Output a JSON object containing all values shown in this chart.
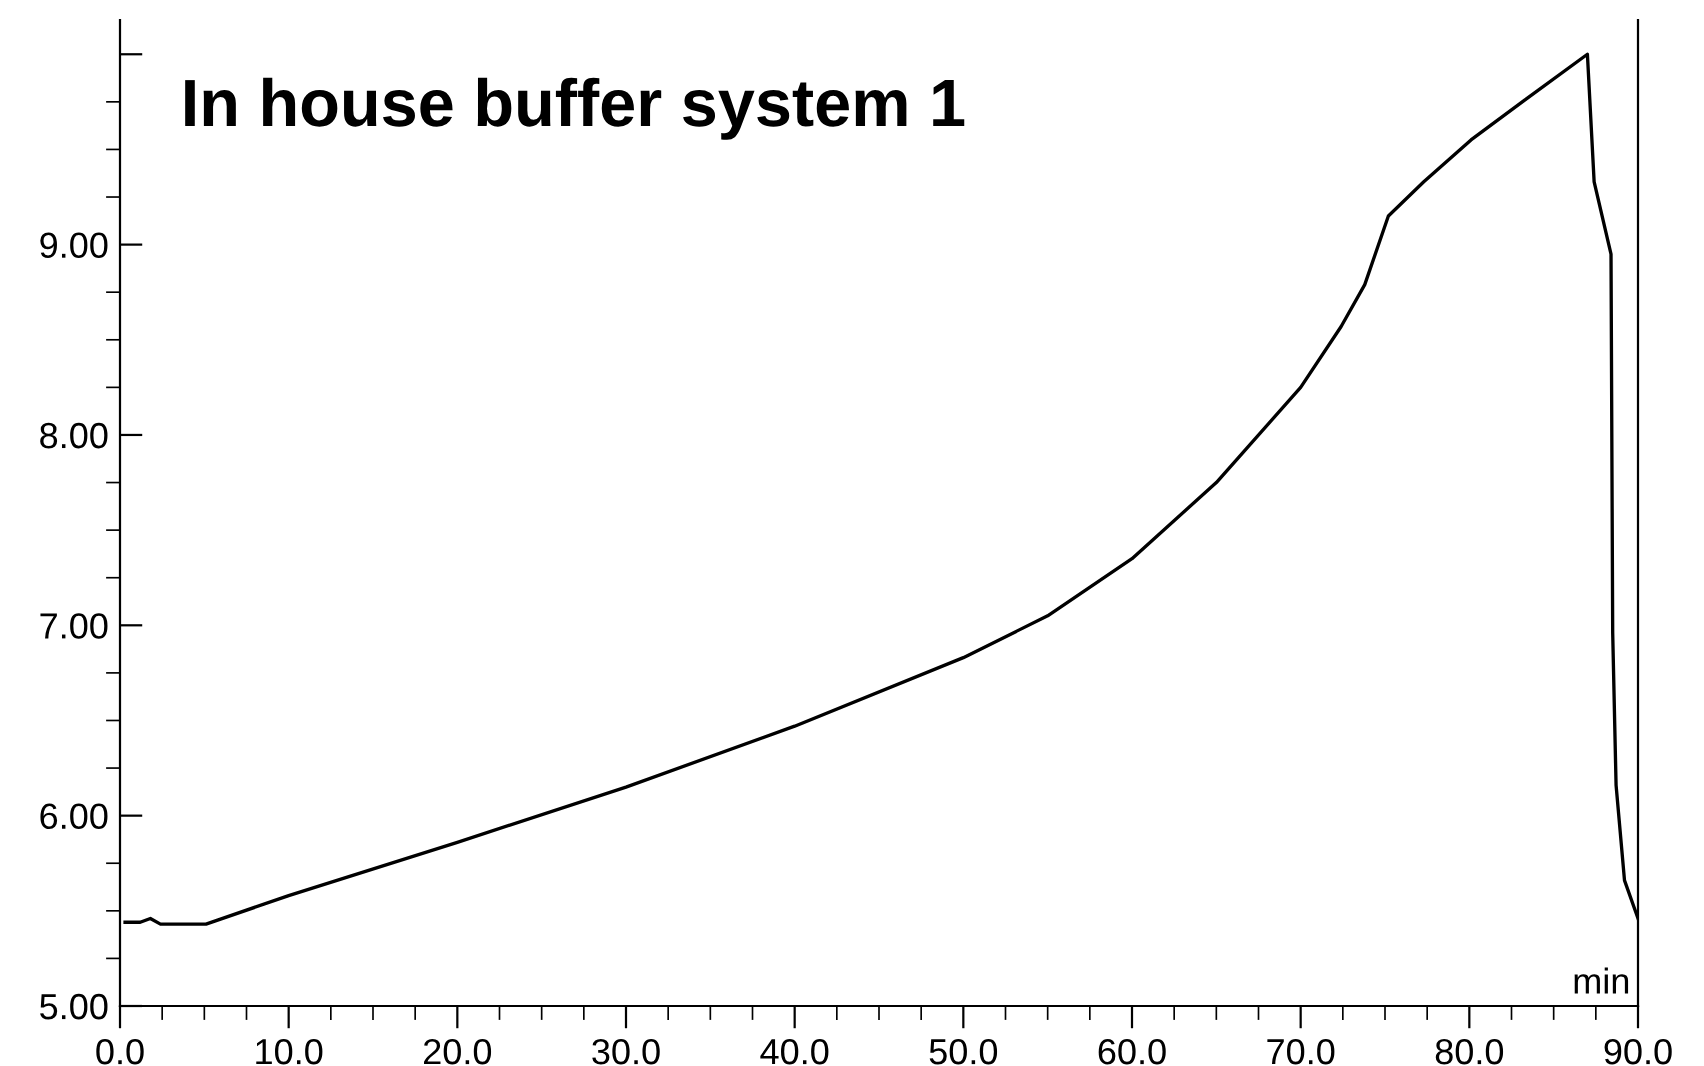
{
  "chart_data": {
    "type": "line",
    "title": "In house buffer system 1",
    "xlabel": "min",
    "x": [
      0.3,
      1.2,
      1.8,
      2.4,
      5.1,
      10,
      20,
      30,
      40,
      50,
      55,
      60,
      65,
      70,
      72.4,
      73.8,
      75.2,
      77.3,
      80.1,
      83.3,
      87.0,
      87.4,
      88.4,
      88.5,
      88.7,
      89.2,
      90.0
    ],
    "series": [
      {
        "color": "#000000",
        "values": [
          5.44,
          5.44,
          5.46,
          5.43,
          5.43,
          5.58,
          5.86,
          6.15,
          6.47,
          6.83,
          7.05,
          7.35,
          7.75,
          8.25,
          8.57,
          8.79,
          9.15,
          9.33,
          9.55,
          9.76,
          10.0,
          9.33,
          8.95,
          6.96,
          6.16,
          5.66,
          5.46
        ]
      }
    ],
    "xlim": [
      0,
      90
    ],
    "xticks": [
      {
        "value": 0,
        "label": "0.0"
      },
      {
        "value": 10,
        "label": "10.0"
      },
      {
        "value": 20,
        "label": "20.0"
      },
      {
        "value": 30,
        "label": "30.0"
      },
      {
        "value": 40,
        "label": "40.0"
      },
      {
        "value": 50,
        "label": "50.0"
      },
      {
        "value": 60,
        "label": "60.0"
      },
      {
        "value": 70,
        "label": "70.0"
      },
      {
        "value": 80,
        "label": "80.0"
      },
      {
        "value": 90,
        "label": "90.0"
      }
    ],
    "ylim": [
      5,
      10.18
    ],
    "yticks": [
      {
        "value": 5,
        "label": "5.00"
      },
      {
        "value": 6,
        "label": "6.00"
      },
      {
        "value": 7,
        "label": "7.00"
      },
      {
        "value": 8,
        "label": "8.00"
      },
      {
        "value": 9,
        "label": "9.00"
      },
      {
        "value": 10,
        "label": null
      }
    ],
    "grid": false,
    "legend": false,
    "marker": "none",
    "line_style": "solid"
  }
}
